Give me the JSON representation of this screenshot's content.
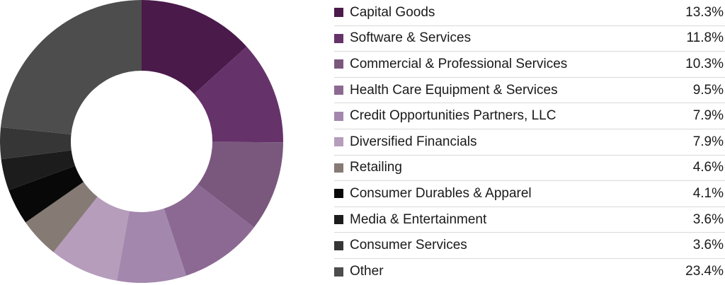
{
  "chart_data": {
    "type": "pie",
    "variant": "donut",
    "legend_position": "right",
    "categories": [
      "Capital Goods",
      "Software & Services",
      "Commercial & Professional Services",
      "Health Care Equipment & Services",
      "Credit Opportunities Partners, LLC",
      "Diversified Financials",
      "Retailing",
      "Consumer Durables & Apparel",
      "Media & Entertainment",
      "Consumer Services",
      "Other"
    ],
    "values": [
      13.3,
      11.8,
      10.3,
      9.5,
      7.9,
      7.9,
      4.6,
      4.1,
      3.6,
      3.6,
      23.4
    ],
    "value_labels": [
      "13.3%",
      "11.8%",
      "10.3%",
      "9.5%",
      "7.9%",
      "7.9%",
      "4.6%",
      "4.1%",
      "3.6%",
      "3.6%",
      "23.4%"
    ],
    "colors": [
      "#4a1a4a",
      "#66326a",
      "#7a587e",
      "#8c6992",
      "#a487ad",
      "#b59dbb",
      "#857a74",
      "#080808",
      "#1c1c1c",
      "#363636",
      "#4d4d4d"
    ]
  }
}
